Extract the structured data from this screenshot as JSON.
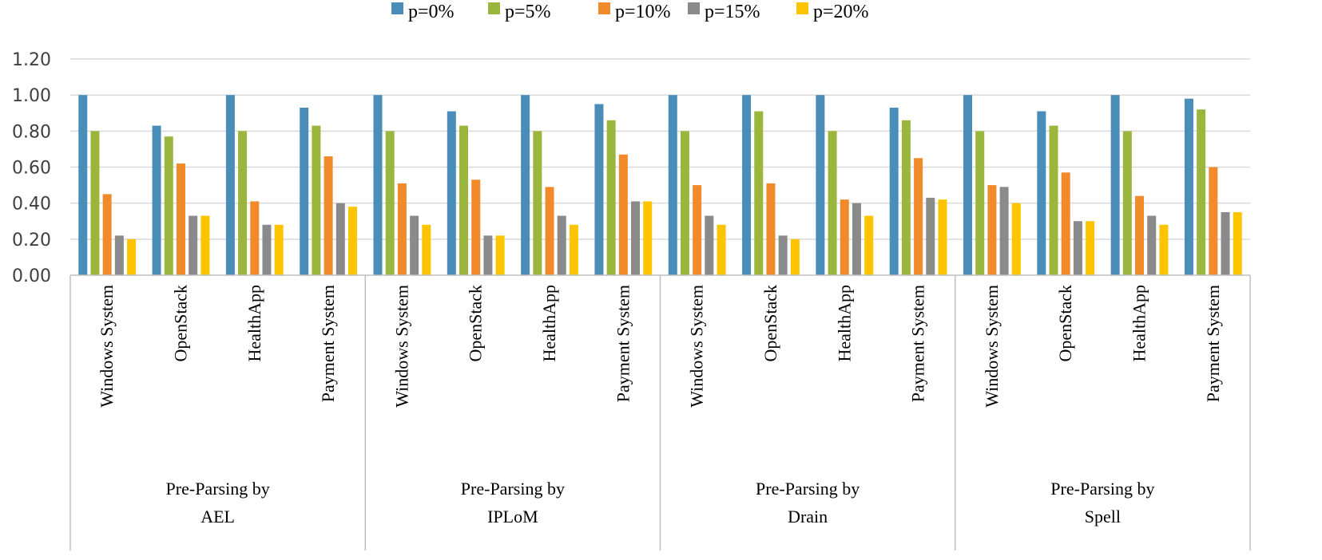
{
  "chart_data": {
    "type": "bar",
    "title": "",
    "xlabel": "",
    "ylabel": "",
    "ylim": [
      0,
      1.2
    ],
    "yticks": [
      "0.00",
      "0.20",
      "0.40",
      "0.60",
      "0.80",
      "1.00",
      "1.20"
    ],
    "grid": true,
    "legend_position": "top",
    "groups": [
      {
        "label_lines": [
          "Pre-Parsing by",
          "AEL"
        ]
      },
      {
        "label_lines": [
          "Pre-Parsing by",
          "IPLoM"
        ]
      },
      {
        "label_lines": [
          "Pre-Parsing by",
          "Drain"
        ]
      },
      {
        "label_lines": [
          "Pre-Parsing by",
          "Spell"
        ]
      }
    ],
    "categories": [
      "Windows System",
      "OpenStack",
      "HealthApp",
      "Payment System",
      "Windows System",
      "OpenStack",
      "HealthApp",
      "Payment System",
      "Windows System",
      "OpenStack",
      "HealthApp",
      "Payment System",
      "Windows System",
      "OpenStack",
      "HealthApp",
      "Payment System"
    ],
    "series": [
      {
        "name": "p=0%",
        "color": "#4a8db8",
        "values": [
          1.0,
          0.83,
          1.0,
          0.93,
          1.0,
          0.91,
          1.0,
          0.95,
          1.0,
          1.0,
          1.0,
          0.93,
          1.0,
          0.91,
          1.0,
          0.98
        ]
      },
      {
        "name": "p=5%",
        "color": "#9ab63c",
        "values": [
          0.8,
          0.77,
          0.8,
          0.83,
          0.8,
          0.83,
          0.8,
          0.86,
          0.8,
          0.91,
          0.8,
          0.86,
          0.8,
          0.83,
          0.8,
          0.92
        ]
      },
      {
        "name": "p=10%",
        "color": "#f18a2a",
        "values": [
          0.45,
          0.62,
          0.41,
          0.66,
          0.51,
          0.53,
          0.49,
          0.67,
          0.5,
          0.51,
          0.42,
          0.65,
          0.5,
          0.57,
          0.44,
          0.6
        ]
      },
      {
        "name": "p=15%",
        "color": "#8a8a8a",
        "values": [
          0.22,
          0.33,
          0.28,
          0.4,
          0.33,
          0.22,
          0.33,
          0.41,
          0.33,
          0.22,
          0.4,
          0.43,
          0.49,
          0.3,
          0.33,
          0.35
        ]
      },
      {
        "name": "p=20%",
        "color": "#ffc400",
        "values": [
          0.2,
          0.33,
          0.28,
          0.38,
          0.28,
          0.22,
          0.28,
          0.41,
          0.28,
          0.2,
          0.33,
          0.42,
          0.4,
          0.3,
          0.28,
          0.35
        ]
      }
    ]
  }
}
